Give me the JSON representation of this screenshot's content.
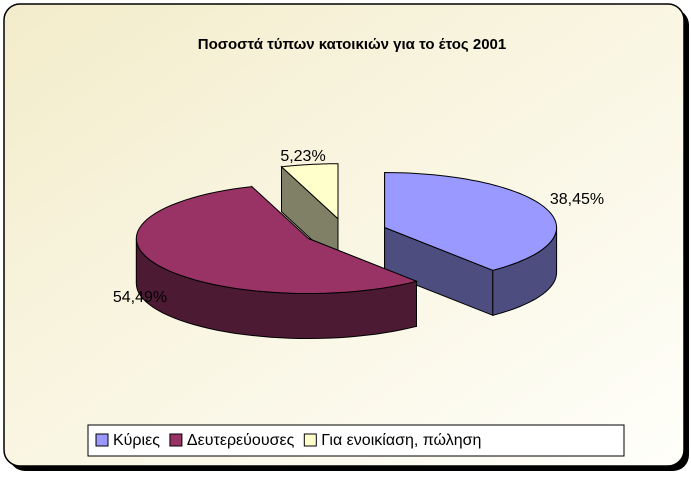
{
  "chart_data": {
    "type": "pie3d",
    "title": "Ποσοστά τύπων κατοικιών για το έτος 2001",
    "categories": [
      "Κύριες",
      "Δευτερεύουσες",
      "Για ενοικίαση, πώληση"
    ],
    "values": [
      38.45,
      54.49,
      5.23
    ],
    "value_labels": [
      "38,45%",
      "54,49%",
      "5,23%"
    ],
    "colors": [
      "#9999ff",
      "#993366",
      "#ffffcc"
    ],
    "legend": "bottom"
  }
}
